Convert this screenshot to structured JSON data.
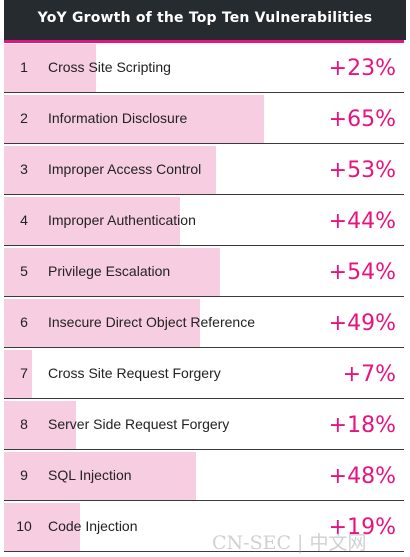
{
  "chart_data": {
    "type": "bar",
    "title": "YoY Growth of the Top Ten Vulnerabilities",
    "unit": "%",
    "xlim": [
      0,
      100
    ],
    "categories": [
      "Cross Site Scripting",
      "Information Disclosure",
      "Improper Access Control",
      "Improper Authentication",
      "Privilege Escalation",
      "Insecure Direct Object Reference",
      "Cross Site Request Forgery",
      "Server Side Request Forgery",
      "SQL Injection",
      "Code Injection"
    ],
    "ranks": [
      "1",
      "2",
      "3",
      "4",
      "5",
      "6",
      "7",
      "8",
      "9",
      "10"
    ],
    "values": [
      23,
      65,
      53,
      44,
      54,
      49,
      7,
      18,
      48,
      19
    ],
    "value_labels": [
      "+23%",
      "+65%",
      "+53%",
      "+44%",
      "+54%",
      "+49%",
      "+7%",
      "+18%",
      "+48%",
      "+19%"
    ],
    "colors": {
      "bar": "#f7cde2",
      "value_text": "#e8137e",
      "header": "#262b2f",
      "accent": "#e8137e"
    }
  },
  "watermark": "CN-SEC | 中文网"
}
